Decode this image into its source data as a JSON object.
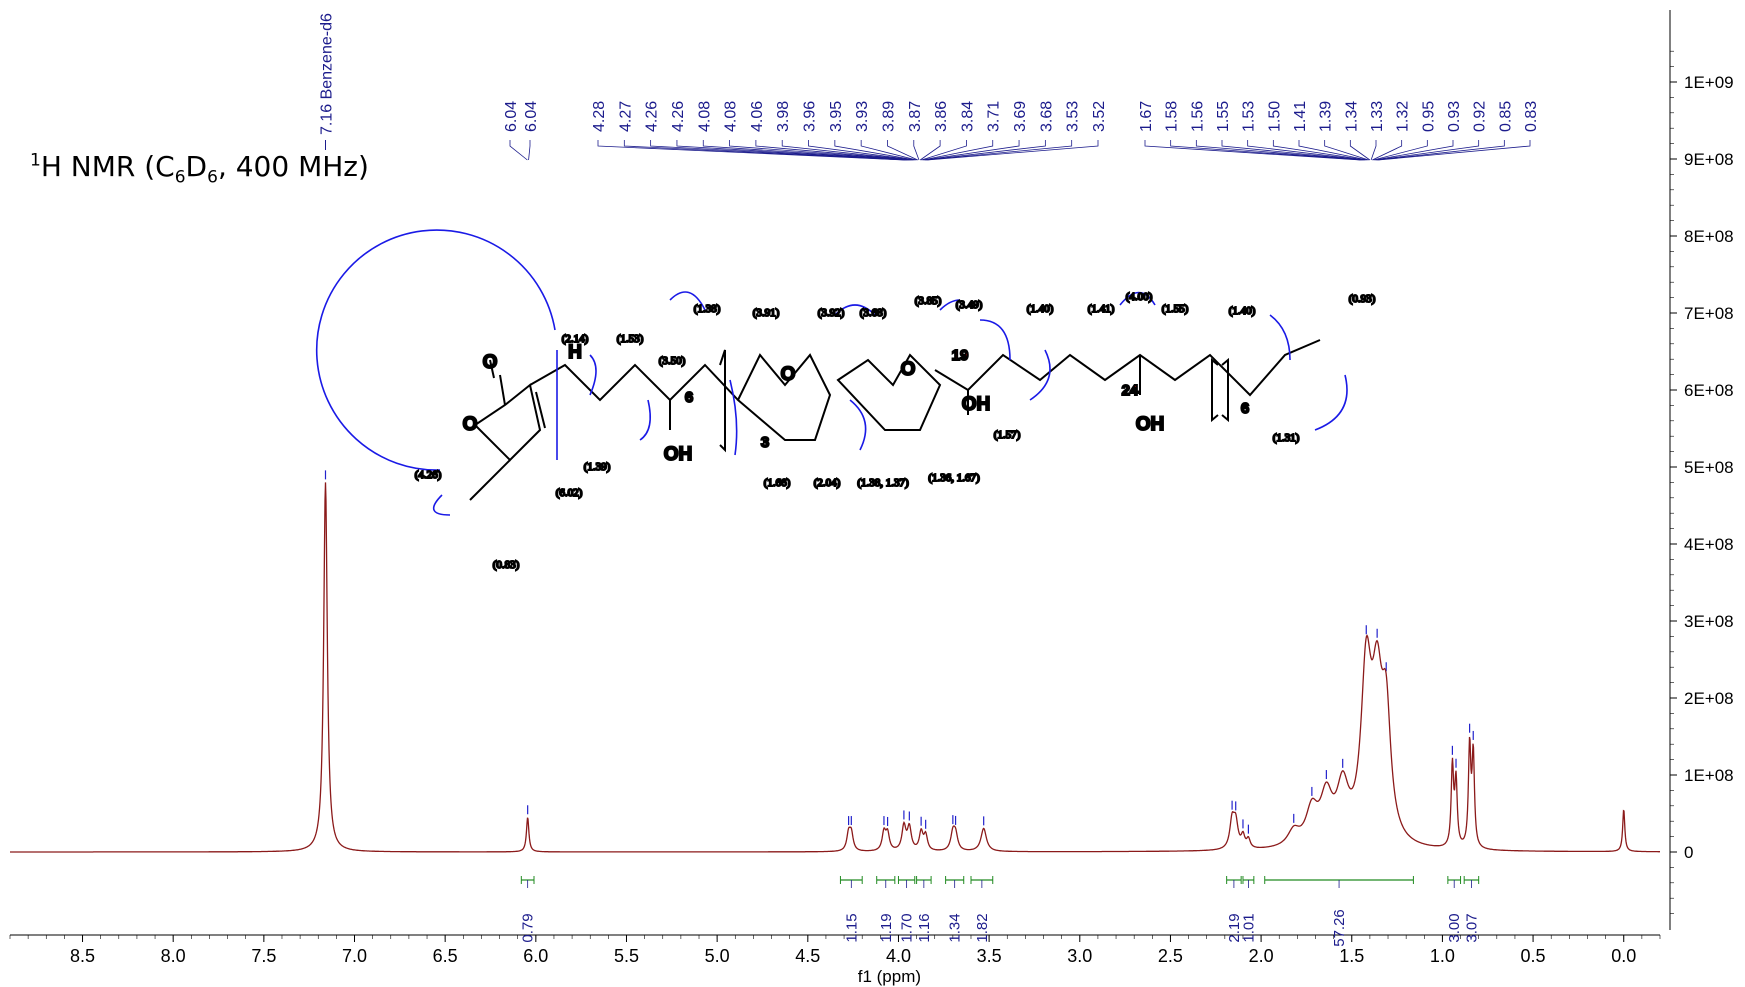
{
  "title": {
    "pre": "H NMR (C",
    "sup": "1",
    "sub1": "6",
    "mid": "D",
    "sub2": "6",
    "post": ", 400 MHz)"
  },
  "chart_data": {
    "type": "line",
    "xlabel": "f1 (ppm)",
    "xlim": [
      8.9,
      -0.2
    ],
    "x_ticks": [
      "8.5",
      "8.0",
      "7.5",
      "7.0",
      "6.5",
      "6.0",
      "5.5",
      "5.0",
      "4.5",
      "4.0",
      "3.5",
      "3.0",
      "2.5",
      "2.0",
      "1.5",
      "1.0",
      "0.5",
      "0.0"
    ],
    "x_tick_values": [
      8.5,
      8.0,
      7.5,
      7.0,
      6.5,
      6.0,
      5.5,
      5.0,
      4.5,
      4.0,
      3.5,
      3.0,
      2.5,
      2.0,
      1.5,
      1.0,
      0.5,
      0.0
    ],
    "ylim": [
      -110000000.0,
      1100000000.0
    ],
    "y_ticks": [
      "1E+09",
      "9E+08",
      "8E+08",
      "7E+08",
      "6E+08",
      "5E+08",
      "4E+08",
      "3E+08",
      "2E+08",
      "1E+08",
      "0"
    ],
    "y_tick_values": [
      1000000000.0,
      900000000.0,
      800000000.0,
      700000000.0,
      600000000.0,
      500000000.0,
      400000000.0,
      300000000.0,
      200000000.0,
      100000000.0,
      0
    ],
    "solvent_label": "7.16 Benzene-d6",
    "peaks": [
      {
        "ppm": 7.16,
        "height": 480000000.0,
        "width": 0.012
      },
      {
        "ppm": 6.045,
        "height": 45000000.0,
        "width": 0.008
      },
      {
        "ppm": 4.275,
        "height": 22000000.0,
        "width": 0.012
      },
      {
        "ppm": 4.26,
        "height": 22000000.0,
        "width": 0.012
      },
      {
        "ppm": 4.08,
        "height": 24000000.0,
        "width": 0.012
      },
      {
        "ppm": 4.06,
        "height": 22000000.0,
        "width": 0.012
      },
      {
        "ppm": 3.97,
        "height": 32000000.0,
        "width": 0.013
      },
      {
        "ppm": 3.94,
        "height": 30000000.0,
        "width": 0.013
      },
      {
        "ppm": 3.875,
        "height": 24000000.0,
        "width": 0.012
      },
      {
        "ppm": 3.85,
        "height": 20000000.0,
        "width": 0.012
      },
      {
        "ppm": 3.7,
        "height": 22000000.0,
        "width": 0.014
      },
      {
        "ppm": 3.685,
        "height": 20000000.0,
        "width": 0.014
      },
      {
        "ppm": 3.53,
        "height": 30000000.0,
        "width": 0.018
      },
      {
        "ppm": 2.16,
        "height": 36000000.0,
        "width": 0.015
      },
      {
        "ppm": 2.14,
        "height": 33000000.0,
        "width": 0.015
      },
      {
        "ppm": 2.1,
        "height": 16000000.0,
        "width": 0.012
      },
      {
        "ppm": 2.07,
        "height": 12000000.0,
        "width": 0.012
      },
      {
        "ppm": 1.82,
        "height": 20000000.0,
        "width": 0.04
      },
      {
        "ppm": 1.72,
        "height": 45000000.0,
        "width": 0.04
      },
      {
        "ppm": 1.64,
        "height": 60000000.0,
        "width": 0.04
      },
      {
        "ppm": 1.55,
        "height": 70000000.0,
        "width": 0.04
      },
      {
        "ppm": 1.42,
        "height": 215000000.0,
        "width": 0.035
      },
      {
        "ppm": 1.36,
        "height": 175000000.0,
        "width": 0.035
      },
      {
        "ppm": 1.31,
        "height": 150000000.0,
        "width": 0.03
      },
      {
        "ppm": 0.945,
        "height": 105000000.0,
        "width": 0.008
      },
      {
        "ppm": 0.925,
        "height": 85000000.0,
        "width": 0.008
      },
      {
        "ppm": 0.85,
        "height": 130000000.0,
        "width": 0.008
      },
      {
        "ppm": 0.83,
        "height": 120000000.0,
        "width": 0.008
      },
      {
        "ppm": 0.0,
        "height": 55000000.0,
        "width": 0.007
      }
    ],
    "peak_groups": [
      {
        "ppm": 6.04,
        "labels": [
          "6.04",
          "6.04"
        ]
      },
      {
        "ppm": 3.9,
        "labels": [
          "4.28",
          "4.27",
          "4.26",
          "4.26",
          "4.08",
          "4.08",
          "4.06",
          "3.98",
          "3.96",
          "3.95",
          "3.93",
          "3.89",
          "3.87",
          "3.86",
          "3.84",
          "3.71",
          "3.69",
          "3.68",
          "3.53",
          "3.52"
        ]
      },
      {
        "ppm": 1.4,
        "labels": [
          "1.67",
          "1.58",
          "1.56",
          "1.55",
          "1.53",
          "1.50",
          "1.41",
          "1.39",
          "1.34",
          "1.33",
          "1.32",
          "0.95",
          "0.93",
          "0.92",
          "0.85",
          "0.83"
        ]
      }
    ],
    "integrals": [
      {
        "from": 6.08,
        "to": 6.01,
        "value": "0.79"
      },
      {
        "from": 4.32,
        "to": 4.2,
        "value": "1.15"
      },
      {
        "from": 4.12,
        "to": 4.02,
        "value": "1.19"
      },
      {
        "from": 4.0,
        "to": 3.91,
        "value": "1.70"
      },
      {
        "from": 3.9,
        "to": 3.82,
        "value": "1.16"
      },
      {
        "from": 3.74,
        "to": 3.64,
        "value": "1.34"
      },
      {
        "from": 3.6,
        "to": 3.48,
        "value": "1.82"
      },
      {
        "from": 2.19,
        "to": 2.11,
        "value": "2.19"
      },
      {
        "from": 2.1,
        "to": 2.04,
        "value": "1.01"
      },
      {
        "from": 1.98,
        "to": 1.16,
        "value": "57.26"
      },
      {
        "from": 0.97,
        "to": 0.9,
        "value": "3.00"
      },
      {
        "from": 0.88,
        "to": 0.8,
        "value": "3.07"
      }
    ]
  },
  "structure": {
    "labels": [
      "(2.14)",
      "(1.53)",
      "(3.50)",
      "(1.38)",
      "(3.91)",
      "(3.92)",
      "(3.68)",
      "(3.85)",
      "(3.49)",
      "(1.40)",
      "(1.41)",
      "(4.00)",
      "(1.55)",
      "(1.40)",
      "(0.93)",
      "(1.39)",
      "(6.02)",
      "(4.26)",
      "(0.83)",
      "(1.66)",
      "(2.04)",
      "(1.38, 1.37)",
      "(1.36, 1.67)",
      "(1.57)",
      "(1.31)"
    ],
    "atoms": [
      "O",
      "O",
      "O",
      "O",
      "OH",
      "OH",
      "OH",
      "H",
      "3",
      "6",
      "6",
      "19",
      "24"
    ]
  }
}
